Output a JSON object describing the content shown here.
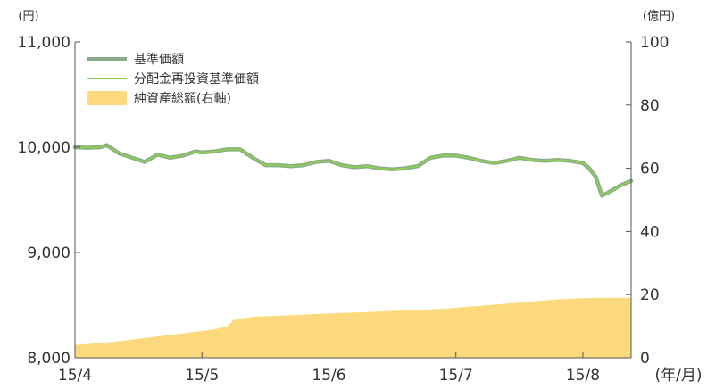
{
  "chart_data": {
    "type": "line",
    "left_axis": {
      "unit": "(円)",
      "ylim": [
        8000,
        11000
      ],
      "ticks": [
        8000,
        9000,
        10000,
        11000
      ],
      "tick_labels": [
        "8,000",
        "9,000",
        "10,000",
        "11,000"
      ]
    },
    "right_axis": {
      "unit": "(億円)",
      "ylim": [
        0,
        100
      ],
      "ticks": [
        0,
        20,
        40,
        60,
        80,
        100
      ],
      "tick_labels": [
        "0",
        "20",
        "40",
        "60",
        "80",
        "100"
      ]
    },
    "x_axis": {
      "unit": "(年/月)",
      "tick_labels": [
        "15/4",
        "15/5",
        "15/6",
        "15/7",
        "15/8"
      ],
      "tick_positions": [
        0,
        1,
        2,
        3,
        4
      ],
      "xlim": [
        0,
        4.38
      ]
    },
    "legend": {
      "placement": "top-left",
      "items": [
        {
          "label": "基準価額",
          "color": "#8aab8a",
          "kind": "line"
        },
        {
          "label": "分配金再投資基準価額",
          "color": "#8fd14f",
          "kind": "line"
        },
        {
          "label": "純資産総額(右軸)",
          "color": "#fcd97c",
          "kind": "area"
        }
      ]
    },
    "series": [
      {
        "name": "基準価額",
        "axis": "left",
        "color": "#8aab8a",
        "x": [
          0,
          0.1,
          0.2,
          0.25,
          0.35,
          0.45,
          0.55,
          0.65,
          0.75,
          0.85,
          0.95,
          1.0,
          1.1,
          1.2,
          1.3,
          1.4,
          1.5,
          1.6,
          1.7,
          1.8,
          1.9,
          2.0,
          2.1,
          2.2,
          2.3,
          2.4,
          2.5,
          2.6,
          2.7,
          2.8,
          2.9,
          3.0,
          3.1,
          3.2,
          3.3,
          3.4,
          3.5,
          3.6,
          3.7,
          3.8,
          3.9,
          4.0,
          4.05,
          4.1,
          4.15,
          4.2,
          4.3,
          4.38
        ],
        "values": [
          10000,
          9995,
          10000,
          10020,
          9940,
          9900,
          9860,
          9930,
          9900,
          9920,
          9960,
          9950,
          9960,
          9980,
          9980,
          9900,
          9830,
          9830,
          9820,
          9830,
          9860,
          9870,
          9830,
          9810,
          9820,
          9800,
          9790,
          9800,
          9820,
          9900,
          9920,
          9920,
          9900,
          9870,
          9850,
          9870,
          9900,
          9880,
          9870,
          9880,
          9870,
          9850,
          9800,
          9720,
          9540,
          9570,
          9640,
          9680
        ]
      },
      {
        "name": "分配金再投資基準価額",
        "axis": "left",
        "color": "#8fd14f",
        "x": [
          0,
          0.1,
          0.2,
          0.25,
          0.35,
          0.45,
          0.55,
          0.65,
          0.75,
          0.85,
          0.95,
          1.0,
          1.1,
          1.2,
          1.3,
          1.4,
          1.5,
          1.6,
          1.7,
          1.8,
          1.9,
          2.0,
          2.1,
          2.2,
          2.3,
          2.4,
          2.5,
          2.6,
          2.7,
          2.8,
          2.9,
          3.0,
          3.1,
          3.2,
          3.3,
          3.4,
          3.5,
          3.6,
          3.7,
          3.8,
          3.9,
          4.0,
          4.05,
          4.1,
          4.15,
          4.2,
          4.3,
          4.38
        ],
        "values": [
          10000,
          9995,
          10000,
          10020,
          9940,
          9900,
          9860,
          9930,
          9900,
          9920,
          9960,
          9950,
          9960,
          9980,
          9980,
          9900,
          9830,
          9830,
          9820,
          9830,
          9860,
          9870,
          9830,
          9810,
          9820,
          9800,
          9790,
          9800,
          9820,
          9900,
          9920,
          9920,
          9900,
          9870,
          9850,
          9870,
          9900,
          9880,
          9870,
          9880,
          9870,
          9850,
          9800,
          9720,
          9540,
          9570,
          9640,
          9680
        ]
      },
      {
        "name": "純資産総額(右軸)",
        "axis": "right",
        "type": "area",
        "color": "#fcd97c",
        "x": [
          0,
          0.3,
          0.5,
          0.7,
          0.9,
          1.1,
          1.2,
          1.25,
          1.4,
          1.7,
          2.0,
          2.3,
          2.6,
          2.9,
          3.2,
          3.5,
          3.8,
          4.1,
          4.38
        ],
        "values": [
          4,
          5,
          6,
          7,
          8,
          9,
          10,
          12,
          13,
          13.5,
          14,
          14.5,
          15,
          15.5,
          16.5,
          17.5,
          18.5,
          19,
          19
        ]
      }
    ]
  }
}
